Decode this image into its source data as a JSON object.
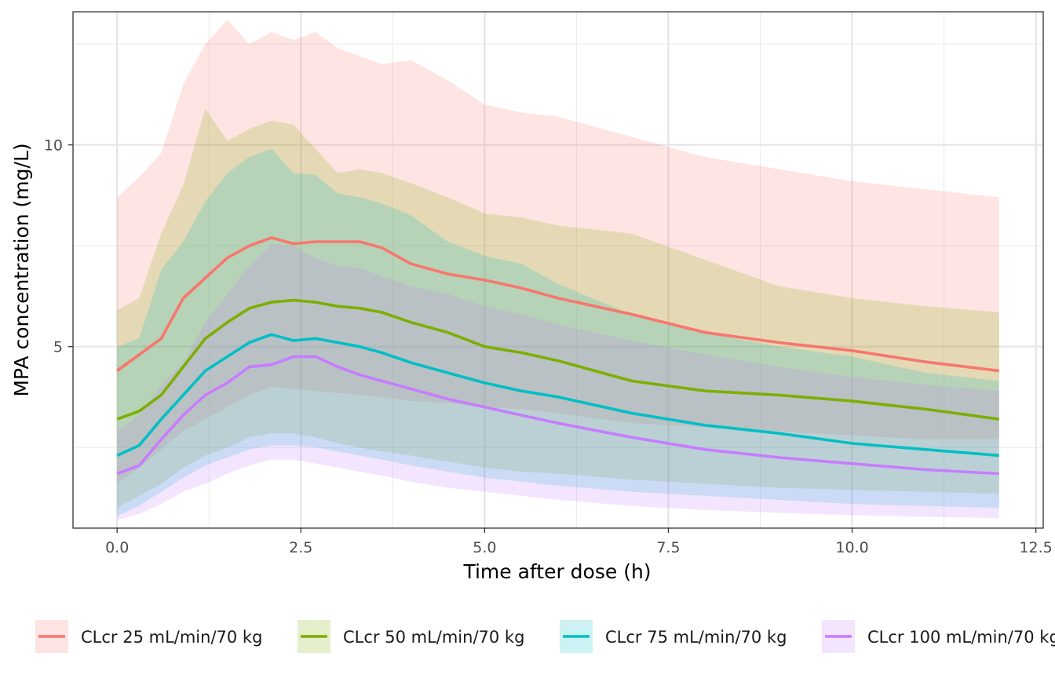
{
  "chart_data": {
    "type": "line",
    "title": "",
    "xlabel": "Time after dose (h)",
    "ylabel": "MPA concentration (mg/L)",
    "xlim": [
      -0.6,
      12.6
    ],
    "ylim": [
      0.5,
      13.3
    ],
    "x_ticks": [
      0,
      2.5,
      5,
      7.5,
      10,
      12.5
    ],
    "x_tick_labels": [
      "0.0",
      "2.5",
      "5.0",
      "7.5",
      "10.0",
      "12.5"
    ],
    "y_ticks": [
      5,
      10
    ],
    "y_tick_labels": [
      "5",
      "10"
    ],
    "grid": true,
    "legend_position": "bottom",
    "series": [
      {
        "name": "CLcr 25 mL/min/70 kg",
        "color": "#F8766D",
        "x": [
          0,
          0.3,
          0.6,
          0.9,
          1.2,
          1.5,
          1.8,
          2.1,
          2.4,
          2.7,
          3.0,
          3.3,
          3.6,
          4.0,
          4.5,
          5.0,
          5.5,
          6.0,
          7.0,
          8.0,
          9.0,
          10.0,
          11.0,
          12.0
        ],
        "y": [
          4.4,
          4.8,
          5.2,
          6.2,
          6.7,
          7.2,
          7.5,
          7.7,
          7.55,
          7.6,
          7.6,
          7.6,
          7.45,
          7.05,
          6.8,
          6.65,
          6.45,
          6.2,
          5.8,
          5.35,
          5.1,
          4.9,
          4.62,
          4.4
        ],
        "lower": [
          1.6,
          2.0,
          2.45,
          2.9,
          3.2,
          3.5,
          3.8,
          4.0,
          3.95,
          3.9,
          3.85,
          3.8,
          3.75,
          3.65,
          3.6,
          3.5,
          3.45,
          3.35,
          3.1,
          3.0,
          2.9,
          2.8,
          2.7,
          2.7
        ],
        "upper": [
          8.7,
          9.2,
          9.8,
          11.5,
          12.5,
          13.1,
          12.5,
          12.8,
          12.6,
          12.8,
          12.4,
          12.2,
          12.0,
          12.1,
          11.6,
          11.0,
          10.8,
          10.7,
          10.2,
          9.7,
          9.4,
          9.1,
          8.9,
          8.7
        ]
      },
      {
        "name": "CLcr 50 mL/min/70 kg",
        "color": "#7CAE00",
        "x": [
          0,
          0.3,
          0.6,
          0.9,
          1.2,
          1.5,
          1.8,
          2.1,
          2.4,
          2.7,
          3.0,
          3.3,
          3.6,
          4.0,
          4.5,
          5.0,
          5.5,
          6.0,
          7.0,
          8.0,
          9.0,
          10.0,
          11.0,
          12.0
        ],
        "y": [
          3.2,
          3.4,
          3.8,
          4.5,
          5.2,
          5.6,
          5.95,
          6.1,
          6.15,
          6.1,
          6.0,
          5.95,
          5.85,
          5.6,
          5.35,
          5.0,
          4.85,
          4.65,
          4.15,
          3.9,
          3.8,
          3.65,
          3.45,
          3.2
        ],
        "lower": [
          1.0,
          1.3,
          1.6,
          2.0,
          2.3,
          2.5,
          2.75,
          2.85,
          2.85,
          2.75,
          2.6,
          2.5,
          2.4,
          2.3,
          2.15,
          2.0,
          1.9,
          1.85,
          1.7,
          1.6,
          1.5,
          1.45,
          1.4,
          1.35
        ],
        "upper": [
          5.9,
          6.2,
          7.8,
          9.0,
          10.9,
          10.1,
          10.4,
          10.6,
          10.5,
          9.9,
          9.3,
          9.4,
          9.3,
          9.05,
          8.7,
          8.3,
          8.2,
          8.0,
          7.8,
          7.15,
          6.5,
          6.2,
          6.0,
          5.85
        ]
      },
      {
        "name": "CLcr 75 mL/min/70 kg",
        "color": "#00BFC4",
        "x": [
          0,
          0.3,
          0.6,
          0.9,
          1.2,
          1.5,
          1.8,
          2.1,
          2.4,
          2.7,
          3.0,
          3.3,
          3.6,
          4.0,
          4.5,
          5.0,
          5.5,
          6.0,
          7.0,
          8.0,
          9.0,
          10.0,
          11.0,
          12.0
        ],
        "y": [
          2.3,
          2.55,
          3.2,
          3.8,
          4.4,
          4.75,
          5.1,
          5.3,
          5.15,
          5.2,
          5.1,
          5.0,
          4.85,
          4.6,
          4.35,
          4.1,
          3.9,
          3.75,
          3.35,
          3.05,
          2.85,
          2.6,
          2.45,
          2.3
        ],
        "lower": [
          0.8,
          1.05,
          1.4,
          1.75,
          2.05,
          2.25,
          2.45,
          2.55,
          2.55,
          2.5,
          2.4,
          2.3,
          2.2,
          2.05,
          1.9,
          1.75,
          1.65,
          1.55,
          1.4,
          1.3,
          1.2,
          1.1,
          1.05,
          1.0
        ],
        "upper": [
          5.0,
          5.2,
          6.9,
          7.6,
          8.6,
          9.3,
          9.7,
          9.9,
          9.3,
          9.25,
          8.8,
          8.7,
          8.55,
          8.25,
          7.6,
          7.25,
          7.05,
          6.55,
          5.8,
          5.35,
          5.0,
          4.75,
          4.35,
          4.15
        ]
      },
      {
        "name": "CLcr 100 mL/min/70 kg",
        "color": "#C77CFF",
        "x": [
          0,
          0.3,
          0.6,
          0.9,
          1.2,
          1.5,
          1.8,
          2.1,
          2.4,
          2.7,
          3.0,
          3.3,
          3.6,
          4.0,
          4.5,
          5.0,
          5.5,
          6.0,
          7.0,
          8.0,
          9.0,
          10.0,
          11.0,
          12.0
        ],
        "y": [
          1.85,
          2.05,
          2.7,
          3.3,
          3.8,
          4.1,
          4.5,
          4.55,
          4.75,
          4.75,
          4.5,
          4.3,
          4.15,
          3.95,
          3.7,
          3.5,
          3.3,
          3.1,
          2.75,
          2.45,
          2.25,
          2.1,
          1.95,
          1.85
        ],
        "lower": [
          0.7,
          0.85,
          1.1,
          1.4,
          1.6,
          1.85,
          2.05,
          2.2,
          2.2,
          2.1,
          2.0,
          1.9,
          1.8,
          1.65,
          1.5,
          1.4,
          1.3,
          1.2,
          1.05,
          0.95,
          0.88,
          0.82,
          0.78,
          0.75
        ],
        "upper": [
          2.9,
          3.3,
          4.05,
          4.6,
          5.6,
          6.3,
          7.0,
          7.55,
          7.5,
          7.2,
          7.0,
          6.95,
          6.75,
          6.5,
          6.3,
          6.0,
          5.8,
          5.55,
          5.15,
          4.8,
          4.5,
          4.25,
          4.05,
          3.9
        ]
      }
    ]
  }
}
